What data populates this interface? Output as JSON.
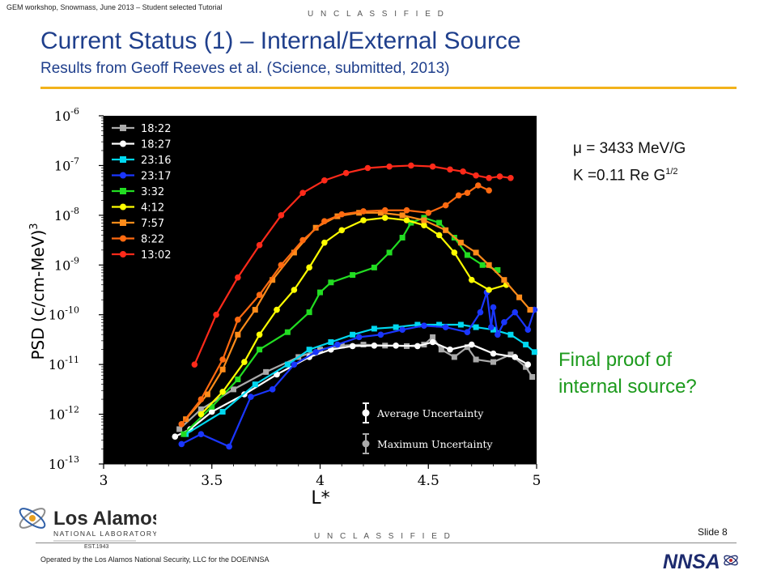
{
  "header": {
    "workshop_note": "GEM workshop, Snowmass, June 2013 – Student selected Tutorial",
    "classification": "U N C L A S S I F I E D"
  },
  "slide": {
    "title": "Current Status (1) – Internal/External Source",
    "subtitle": "Results from Geoff Reeves et al. (Science, submitted, 2013)",
    "mu_text": "μ = 3433 MeV/G",
    "k_text": "K =0.11 Re G",
    "k_exponent": "1/2",
    "proof_line1": "Final proof of",
    "proof_line2": "internal source?"
  },
  "footer": {
    "classification": "U N C L A S S I F I E D",
    "slide_number": "Slide 8",
    "operated_by": "Operated by the Los Alamos National Security, LLC for the DOE/NNSA",
    "logo_los": "Los Alamos",
    "logo_lab": "NATIONAL LABORATORY",
    "logo_est": "EST.1943",
    "nnsa_logo": "NNSA"
  },
  "colors": {
    "title_blue": "#1f3f8c",
    "rule_gold": "#f2b21b",
    "proof_green": "#1c9a1c"
  },
  "chart_data": {
    "type": "line",
    "xlabel": "L*",
    "ylabel": "PSD (c/cm-MeV)",
    "ylabel_exp": "3",
    "xlim": [
      3,
      5
    ],
    "ylim_log10": [
      -13,
      -6
    ],
    "x_ticks": [
      "3",
      "3.5",
      "4",
      "4.5",
      "5"
    ],
    "y_ticks": [
      {
        "base": "10",
        "exp": "-6"
      },
      {
        "base": "10",
        "exp": "-7"
      },
      {
        "base": "10",
        "exp": "-8"
      },
      {
        "base": "10",
        "exp": "-9"
      },
      {
        "base": "10",
        "exp": "-10"
      },
      {
        "base": "10",
        "exp": "-11"
      },
      {
        "base": "10",
        "exp": "-12"
      },
      {
        "base": "10",
        "exp": "-13"
      }
    ],
    "legend_position": "top-left",
    "uncertainty_legend": [
      "Average Uncertainty",
      "Maximum Uncertainty"
    ],
    "series": [
      {
        "name": "18:22",
        "color": "#aaaaaa",
        "marker": "square",
        "points": [
          [
            3.35,
            -12.3
          ],
          [
            3.45,
            -11.9
          ],
          [
            3.6,
            -11.5
          ],
          [
            3.75,
            -11.15
          ],
          [
            3.9,
            -10.85
          ],
          [
            4.0,
            -10.7
          ],
          [
            4.1,
            -10.62
          ],
          [
            4.2,
            -10.6
          ],
          [
            4.3,
            -10.62
          ],
          [
            4.4,
            -10.63
          ],
          [
            4.48,
            -10.6
          ],
          [
            4.52,
            -10.45
          ],
          [
            4.56,
            -10.7
          ],
          [
            4.62,
            -10.85
          ],
          [
            4.68,
            -10.65
          ],
          [
            4.72,
            -10.9
          ],
          [
            4.8,
            -10.95
          ],
          [
            4.88,
            -10.8
          ],
          [
            4.95,
            -11.05
          ],
          [
            4.98,
            -11.25
          ]
        ]
      },
      {
        "name": "18:27",
        "color": "#ffffff",
        "marker": "circle",
        "points": [
          [
            3.33,
            -12.45
          ],
          [
            3.4,
            -12.3
          ],
          [
            3.5,
            -11.95
          ],
          [
            3.65,
            -11.6
          ],
          [
            3.8,
            -11.2
          ],
          [
            3.95,
            -10.85
          ],
          [
            4.05,
            -10.7
          ],
          [
            4.15,
            -10.63
          ],
          [
            4.25,
            -10.62
          ],
          [
            4.35,
            -10.62
          ],
          [
            4.45,
            -10.63
          ],
          [
            4.52,
            -10.55
          ],
          [
            4.6,
            -10.7
          ],
          [
            4.7,
            -10.6
          ],
          [
            4.8,
            -10.78
          ],
          [
            4.9,
            -10.85
          ],
          [
            4.96,
            -11.0
          ]
        ]
      },
      {
        "name": "23:16",
        "color": "#00d8f0",
        "marker": "square",
        "points": [
          [
            3.38,
            -12.4
          ],
          [
            3.55,
            -11.95
          ],
          [
            3.7,
            -11.4
          ],
          [
            3.85,
            -11.0
          ],
          [
            3.95,
            -10.7
          ],
          [
            4.05,
            -10.55
          ],
          [
            4.15,
            -10.4
          ],
          [
            4.25,
            -10.28
          ],
          [
            4.35,
            -10.25
          ],
          [
            4.45,
            -10.2
          ],
          [
            4.55,
            -10.2
          ],
          [
            4.65,
            -10.2
          ],
          [
            4.72,
            -10.25
          ],
          [
            4.8,
            -10.3
          ],
          [
            4.88,
            -10.4
          ],
          [
            4.95,
            -10.6
          ],
          [
            4.99,
            -10.75
          ]
        ]
      },
      {
        "name": "23:17",
        "color": "#1a36ff",
        "marker": "circle",
        "points": [
          [
            3.36,
            -12.6
          ],
          [
            3.45,
            -12.4
          ],
          [
            3.58,
            -12.65
          ],
          [
            3.68,
            -11.65
          ],
          [
            3.78,
            -11.5
          ],
          [
            3.88,
            -11.0
          ],
          [
            3.98,
            -10.75
          ],
          [
            4.08,
            -10.6
          ],
          [
            4.18,
            -10.45
          ],
          [
            4.28,
            -10.4
          ],
          [
            4.38,
            -10.3
          ],
          [
            4.48,
            -10.22
          ],
          [
            4.58,
            -10.25
          ],
          [
            4.68,
            -10.35
          ],
          [
            4.74,
            -9.95
          ],
          [
            4.77,
            -9.55
          ],
          [
            4.79,
            -10.25
          ],
          [
            4.8,
            -9.85
          ],
          [
            4.82,
            -10.4
          ],
          [
            4.85,
            -10.15
          ],
          [
            4.9,
            -9.95
          ],
          [
            4.96,
            -10.3
          ],
          [
            4.99,
            -9.9
          ]
        ]
      },
      {
        "name": "3:32",
        "color": "#22dd22",
        "marker": "square",
        "points": [
          [
            3.37,
            -12.4
          ],
          [
            3.5,
            -11.85
          ],
          [
            3.62,
            -11.3
          ],
          [
            3.72,
            -10.7
          ],
          [
            3.85,
            -10.35
          ],
          [
            3.95,
            -9.95
          ],
          [
            4.0,
            -9.55
          ],
          [
            4.05,
            -9.35
          ],
          [
            4.15,
            -9.2
          ],
          [
            4.25,
            -9.05
          ],
          [
            4.32,
            -8.75
          ],
          [
            4.38,
            -8.45
          ],
          [
            4.42,
            -8.15
          ],
          [
            4.48,
            -8.05
          ],
          [
            4.55,
            -8.15
          ],
          [
            4.62,
            -8.45
          ],
          [
            4.68,
            -8.8
          ],
          [
            4.75,
            -9.0
          ],
          [
            4.82,
            -9.1
          ]
        ]
      },
      {
        "name": "4:12",
        "color": "#ffff00",
        "marker": "circle",
        "points": [
          [
            3.45,
            -12.0
          ],
          [
            3.55,
            -11.55
          ],
          [
            3.65,
            -10.95
          ],
          [
            3.72,
            -10.4
          ],
          [
            3.8,
            -9.9
          ],
          [
            3.88,
            -9.5
          ],
          [
            3.95,
            -9.05
          ],
          [
            4.02,
            -8.55
          ],
          [
            4.1,
            -8.3
          ],
          [
            4.2,
            -8.1
          ],
          [
            4.3,
            -8.05
          ],
          [
            4.4,
            -8.1
          ],
          [
            4.48,
            -8.2
          ],
          [
            4.55,
            -8.4
          ],
          [
            4.62,
            -8.75
          ],
          [
            4.7,
            -9.3
          ],
          [
            4.78,
            -9.5
          ],
          [
            4.86,
            -9.4
          ]
        ]
      },
      {
        "name": "7:57",
        "color": "#ff8c1a",
        "marker": "square",
        "points": [
          [
            3.38,
            -12.1
          ],
          [
            3.48,
            -11.6
          ],
          [
            3.55,
            -11.1
          ],
          [
            3.62,
            -10.4
          ],
          [
            3.7,
            -9.9
          ],
          [
            3.78,
            -9.3
          ],
          [
            3.88,
            -8.75
          ],
          [
            3.98,
            -8.25
          ],
          [
            4.08,
            -8.02
          ],
          [
            4.18,
            -7.95
          ],
          [
            4.28,
            -7.95
          ],
          [
            4.38,
            -8.0
          ],
          [
            4.48,
            -8.1
          ],
          [
            4.58,
            -8.3
          ],
          [
            4.65,
            -8.55
          ],
          [
            4.72,
            -8.75
          ],
          [
            4.78,
            -9.0
          ],
          [
            4.85,
            -9.3
          ],
          [
            4.92,
            -9.65
          ],
          [
            4.97,
            -9.9
          ]
        ]
      },
      {
        "name": "8:22",
        "color": "#ff6a10",
        "marker": "circle",
        "points": [
          [
            3.36,
            -12.2
          ],
          [
            3.45,
            -11.7
          ],
          [
            3.55,
            -10.9
          ],
          [
            3.62,
            -10.1
          ],
          [
            3.72,
            -9.6
          ],
          [
            3.82,
            -9.0
          ],
          [
            3.92,
            -8.5
          ],
          [
            4.02,
            -8.12
          ],
          [
            4.1,
            -7.98
          ],
          [
            4.2,
            -7.92
          ],
          [
            4.3,
            -7.9
          ],
          [
            4.4,
            -7.9
          ],
          [
            4.5,
            -7.95
          ],
          [
            4.58,
            -7.8
          ],
          [
            4.64,
            -7.6
          ],
          [
            4.68,
            -7.55
          ],
          [
            4.73,
            -7.4
          ],
          [
            4.78,
            -7.5
          ]
        ]
      },
      {
        "name": "13:02",
        "color": "#ff2a1a",
        "marker": "circle",
        "points": [
          [
            3.42,
            -11.0
          ],
          [
            3.52,
            -10.0
          ],
          [
            3.62,
            -9.25
          ],
          [
            3.72,
            -8.6
          ],
          [
            3.82,
            -8.0
          ],
          [
            3.92,
            -7.55
          ],
          [
            4.02,
            -7.3
          ],
          [
            4.12,
            -7.15
          ],
          [
            4.22,
            -7.05
          ],
          [
            4.32,
            -7.02
          ],
          [
            4.42,
            -7.0
          ],
          [
            4.52,
            -7.02
          ],
          [
            4.6,
            -7.08
          ],
          [
            4.66,
            -7.12
          ],
          [
            4.72,
            -7.2
          ],
          [
            4.78,
            -7.25
          ],
          [
            4.83,
            -7.22
          ],
          [
            4.88,
            -7.25
          ]
        ]
      }
    ]
  }
}
